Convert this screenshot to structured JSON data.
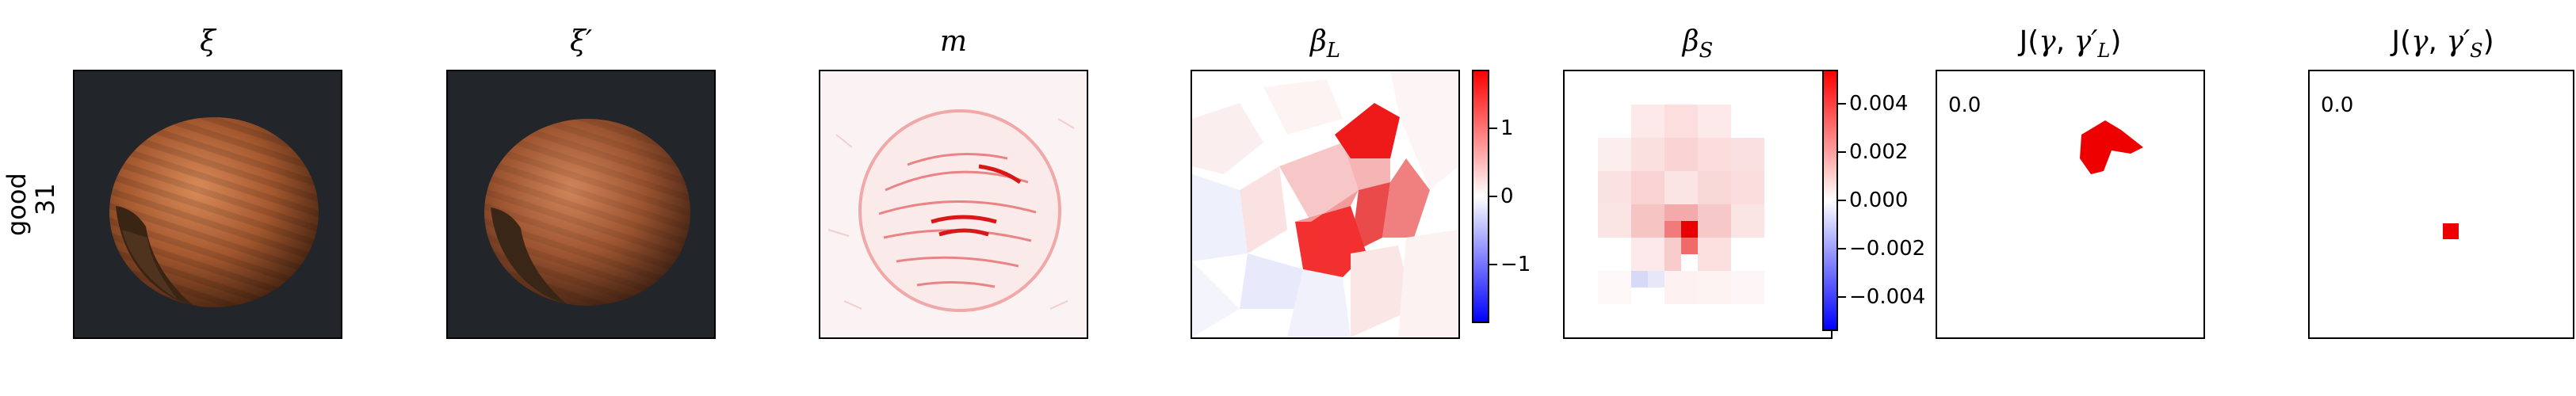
{
  "row": {
    "label_line1": "good",
    "label_line2": "31"
  },
  "panels": [
    {
      "id": "xi",
      "title": "ξ"
    },
    {
      "id": "xi_prime",
      "title": "ξ′"
    },
    {
      "id": "m",
      "title": "m"
    },
    {
      "id": "beta_L",
      "title": "β_L"
    },
    {
      "id": "beta_S",
      "title": "β_S"
    },
    {
      "id": "J_L",
      "title": "J(γ, γ′_L)",
      "value": "0.0"
    },
    {
      "id": "J_S",
      "title": "J(γ, γ′_S)",
      "value": "0.0"
    }
  ],
  "colorbars": {
    "beta_L": {
      "ticks": [
        "1",
        "0",
        "−1"
      ],
      "values": [
        1,
        0,
        -1
      ],
      "min": -1.85,
      "max": 1.85
    },
    "beta_S": {
      "ticks": [
        "0.004",
        "0.002",
        "0.000",
        "−0.002",
        "−0.004"
      ],
      "values": [
        0.004,
        0.002,
        0.0,
        -0.002,
        -0.004
      ],
      "min": -0.0054,
      "max": 0.0054
    }
  },
  "colors": {
    "positive": "#ff0000",
    "negative": "#0000ff",
    "zero": "#ffffff",
    "photo_bg": "#22252a"
  }
}
